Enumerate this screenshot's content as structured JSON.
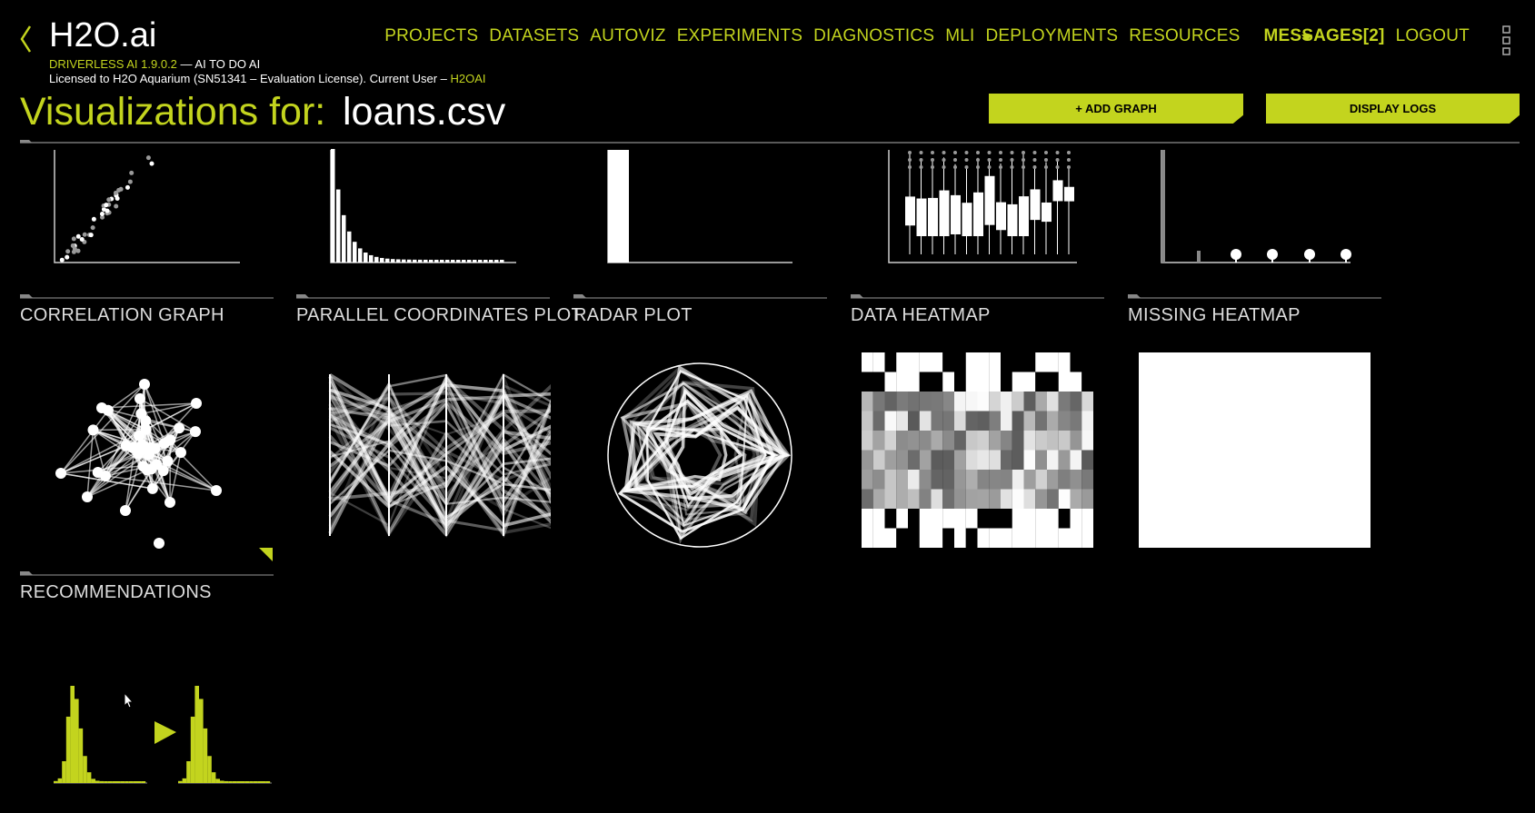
{
  "header": {
    "brand": "H2O.ai",
    "version": "DRIVERLESS AI 1.9.0.2",
    "tagline": " — AI TO DO AI",
    "license": "Licensed to H2O Aquarium (SN51341 – Evaluation License). Current User – ",
    "user": "H2OAI"
  },
  "nav": [
    "PROJECTS",
    "DATASETS",
    "AUTOVIZ",
    "EXPERIMENTS",
    "DIAGNOSTICS",
    "MLI",
    "DEPLOYMENTS",
    "RESOURCES",
    "MESSAGES[2]",
    "LOGOUT"
  ],
  "page": {
    "title": "Visualizations for:",
    "dataset": "loans.csv",
    "buttons": [
      "+ ADD GRAPH",
      "DISPLAY LOGS"
    ]
  },
  "cards": [
    "CORRELATION GRAPH",
    "PARALLEL COORDINATES PLOT",
    "RADAR PLOT",
    "DATA HEATMAP",
    "MISSING HEATMAP",
    "RECOMMENDATIONS"
  ]
}
